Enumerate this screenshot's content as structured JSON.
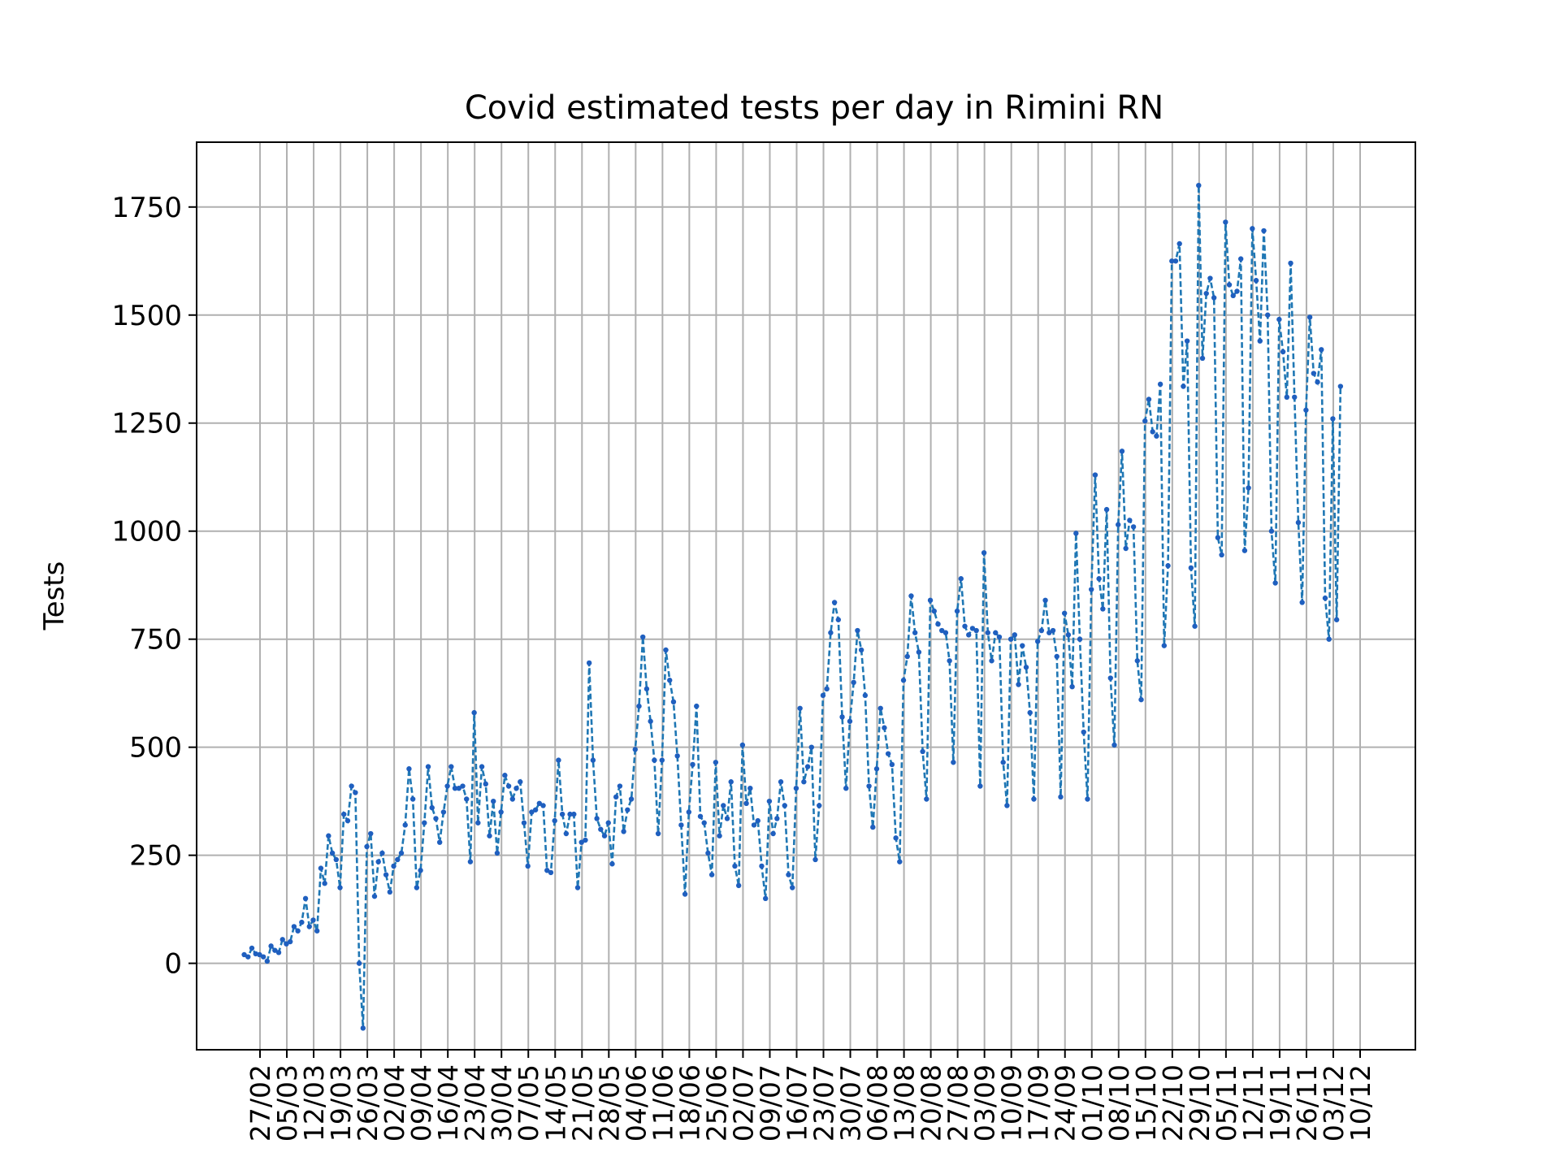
{
  "chart_data": {
    "type": "line",
    "title": "Covid estimated tests per day in Rimini RN",
    "xlabel": "",
    "ylabel": "Tests",
    "ylim": [
      -200,
      1900
    ],
    "yticks": [
      0,
      250,
      500,
      750,
      1000,
      1250,
      1500,
      1750
    ],
    "grid": true,
    "line_style": "dashed",
    "marker": "dot",
    "colors": {
      "line": "#1f77b4",
      "marker": "#1f5fbf",
      "grid": "#b0b0b0"
    },
    "x_start": "25/02",
    "xticks": [
      "27/02",
      "05/03",
      "12/03",
      "19/03",
      "26/03",
      "02/04",
      "09/04",
      "16/04",
      "23/04",
      "30/04",
      "07/05",
      "14/05",
      "21/05",
      "28/05",
      "04/06",
      "11/06",
      "18/06",
      "25/06",
      "02/07",
      "09/07",
      "16/07",
      "23/07",
      "30/07",
      "06/08",
      "13/08",
      "20/08",
      "27/08",
      "03/09",
      "10/09",
      "17/09",
      "24/09",
      "01/10",
      "08/10",
      "15/10",
      "22/10",
      "29/10",
      "05/11",
      "12/11",
      "19/11",
      "26/11",
      "03/12",
      "10/12"
    ],
    "values": [
      20,
      15,
      35,
      22,
      20,
      15,
      5,
      40,
      30,
      25,
      55,
      45,
      50,
      85,
      75,
      95,
      150,
      85,
      100,
      75,
      220,
      185,
      295,
      255,
      240,
      175,
      345,
      330,
      410,
      395,
      0,
      -150,
      270,
      300,
      155,
      235,
      255,
      205,
      165,
      225,
      240,
      255,
      320,
      450,
      380,
      175,
      215,
      325,
      455,
      360,
      335,
      280,
      350,
      410,
      455,
      405,
      405,
      410,
      380,
      235,
      580,
      325,
      455,
      415,
      295,
      375,
      255,
      350,
      435,
      410,
      380,
      405,
      420,
      325,
      225,
      350,
      355,
      370,
      365,
      215,
      210,
      330,
      470,
      345,
      300,
      345,
      345,
      175,
      280,
      285,
      695,
      470,
      335,
      310,
      295,
      325,
      230,
      385,
      410,
      305,
      355,
      380,
      495,
      595,
      755,
      635,
      560,
      470,
      300,
      470,
      725,
      655,
      605,
      480,
      320,
      160,
      350,
      460,
      595,
      340,
      325,
      255,
      205,
      465,
      295,
      365,
      335,
      420,
      225,
      180,
      505,
      370,
      405,
      320,
      330,
      225,
      150,
      375,
      300,
      335,
      420,
      365,
      205,
      175,
      405,
      590,
      420,
      455,
      500,
      240,
      365,
      620,
      635,
      765,
      835,
      795,
      570,
      405,
      560,
      650,
      770,
      725,
      620,
      410,
      315,
      450,
      590,
      545,
      485,
      460,
      290,
      235,
      655,
      710,
      850,
      765,
      720,
      490,
      380,
      840,
      815,
      785,
      770,
      765,
      700,
      465,
      815,
      890,
      780,
      760,
      775,
      770,
      410,
      950,
      765,
      700,
      765,
      755,
      465,
      365,
      750,
      760,
      645,
      735,
      685,
      580,
      380,
      745,
      770,
      840,
      765,
      770,
      710,
      385,
      810,
      760,
      640,
      995,
      750,
      535,
      380,
      865,
      1130,
      890,
      820,
      1050,
      660,
      505,
      1015,
      1185,
      960,
      1025,
      1010,
      700,
      610,
      1255,
      1305,
      1230,
      1220,
      1340,
      735,
      920,
      1625,
      1625,
      1665,
      1335,
      1440,
      915,
      780,
      1800,
      1400,
      1550,
      1585,
      1540,
      985,
      945,
      1715,
      1570,
      1545,
      1555,
      1630,
      955,
      1100,
      1700,
      1580,
      1440,
      1695,
      1500,
      1000,
      880,
      1490,
      1415,
      1310,
      1620,
      1310,
      1020,
      835,
      1280,
      1495,
      1365,
      1345,
      1420,
      845,
      750,
      1260,
      795,
      1335
    ]
  }
}
